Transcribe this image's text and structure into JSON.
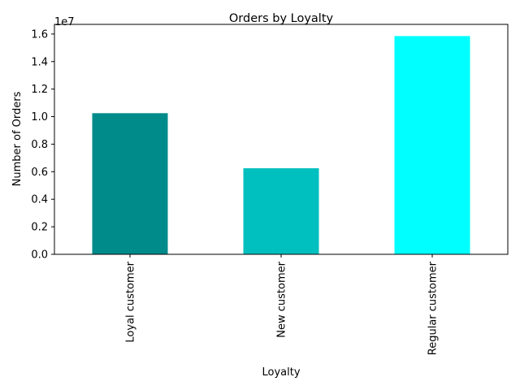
{
  "chart_data": {
    "type": "bar",
    "title": "Orders by Loyalty",
    "xlabel": "Loyalty",
    "ylabel": "Number of Orders",
    "offset_text": "1e7",
    "categories": [
      "Loyal customer",
      "New customer",
      "Regular customer"
    ],
    "values": [
      10250000,
      6250000,
      15850000
    ],
    "colors": [
      "#008B8B",
      "#00BFBF",
      "#00FFFF"
    ],
    "ylim": [
      0,
      16700000
    ],
    "yticks": [
      0,
      2000000,
      4000000,
      6000000,
      8000000,
      10000000,
      12000000,
      14000000,
      16000000
    ],
    "ytick_labels": [
      "0.0",
      "0.2",
      "0.4",
      "0.6",
      "0.8",
      "1.0",
      "1.2",
      "1.4",
      "1.6"
    ],
    "grid": false,
    "legend": false
  }
}
